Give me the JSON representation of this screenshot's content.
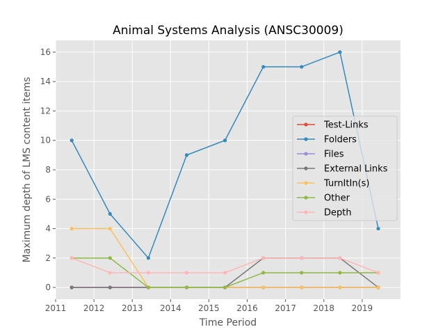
{
  "chart_data": {
    "type": "line",
    "title": "Animal Systems Analysis (ANSC30009)",
    "xlabel": "Time Period",
    "ylabel": "Maximum depth of LMS content items",
    "xlim": [
      2011,
      2020
    ],
    "ylim": [
      -0.8,
      16.8
    ],
    "xticks": [
      2011,
      2012,
      2013,
      2014,
      2015,
      2016,
      2017,
      2018,
      2019
    ],
    "yticks": [
      0,
      2,
      4,
      6,
      8,
      10,
      12,
      14,
      16
    ],
    "grid": true,
    "legend_position": "center-right",
    "x": [
      2011.42,
      2012.42,
      2013.42,
      2014.42,
      2015.42,
      2016.42,
      2017.42,
      2018.42,
      2019.42
    ],
    "series": [
      {
        "name": "Test-Links",
        "color": "#e24a33",
        "values": [
          0,
          0,
          0,
          0,
          0,
          0,
          0,
          0,
          0
        ]
      },
      {
        "name": "Folders",
        "color": "#348abd",
        "values": [
          10,
          5,
          2,
          9,
          10,
          15,
          15,
          16,
          4
        ]
      },
      {
        "name": "Files",
        "color": "#988ed5",
        "values": [
          0,
          0,
          0,
          0,
          0,
          0,
          0,
          0,
          0
        ]
      },
      {
        "name": "External Links",
        "color": "#777777",
        "values": [
          0,
          0,
          0,
          0,
          0,
          2,
          2,
          2,
          0
        ]
      },
      {
        "name": "TurnItIn(s)",
        "color": "#fbc15e",
        "values": [
          4,
          4,
          0,
          0,
          0,
          0,
          0,
          0,
          0
        ]
      },
      {
        "name": "Other",
        "color": "#8eba42",
        "values": [
          2,
          2,
          0,
          0,
          0,
          1,
          1,
          1,
          1
        ]
      },
      {
        "name": "Depth",
        "color": "#ffb5b8",
        "values": [
          2,
          1,
          1,
          1,
          1,
          2,
          2,
          2,
          1
        ]
      }
    ]
  }
}
